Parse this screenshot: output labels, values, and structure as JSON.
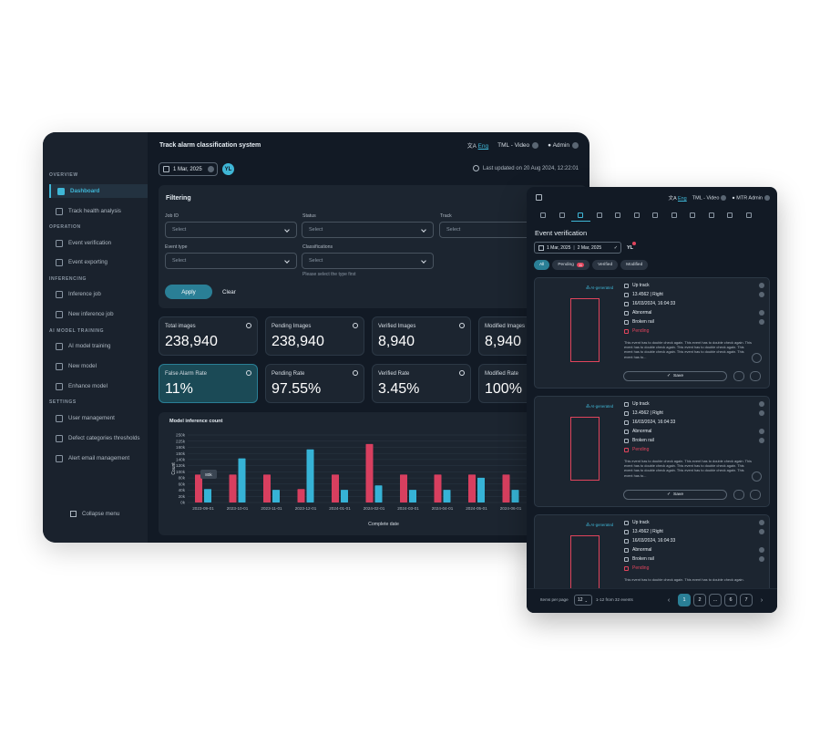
{
  "dashboard": {
    "app_title": "Track alarm classification system",
    "header": {
      "lang_icon": "translate-icon",
      "lang": "Eng",
      "project": "TML - Video",
      "user": "Admin"
    },
    "date": "1 Mar, 2025",
    "lang_badge": "YL",
    "last_updated": "Last updated on 20 Aug 2024, 12:22:01",
    "sidebar": {
      "sections": [
        "OVERVIEW",
        "OPERATION",
        "INFERENCING",
        "AI MODEL TRAINING",
        "SETTINGS"
      ],
      "items": [
        {
          "label": "Dashboard",
          "icon": "grid-icon"
        },
        {
          "label": "Track health analysis",
          "icon": "track-icon"
        },
        {
          "label": "Event verification",
          "icon": "verify-icon"
        },
        {
          "label": "Event exporting",
          "icon": "export-icon"
        },
        {
          "label": "Inference job",
          "icon": "job-icon"
        },
        {
          "label": "New inference job",
          "icon": "new-job-icon"
        },
        {
          "label": "AI model training",
          "icon": "training-icon"
        },
        {
          "label": "New model",
          "icon": "model-icon"
        },
        {
          "label": "Enhance model",
          "icon": "enhance-icon"
        },
        {
          "label": "User management",
          "icon": "users-icon"
        },
        {
          "label": "Defect categories thresholds",
          "icon": "threshold-icon"
        },
        {
          "label": "Alert email management",
          "icon": "email-icon"
        }
      ],
      "collapse": "Collapse menu"
    },
    "filtering": {
      "title": "Filtering",
      "job_id_label": "Job ID",
      "status_label": "Status",
      "track_label": "Track",
      "event_type_label": "Event type",
      "classifications_label": "Classifications",
      "placeholder": "Select",
      "hint": "Please select the type first",
      "apply": "Apply",
      "clear": "Clear"
    },
    "stats": [
      {
        "label": "Total images",
        "value": "238,940"
      },
      {
        "label": "Pending Images",
        "value": "238,940"
      },
      {
        "label": "Verified Images",
        "value": "8,940"
      },
      {
        "label": "Modified Images",
        "value": "8,940"
      },
      {
        "label": "False Alarm Rate",
        "value": "11%"
      },
      {
        "label": "Pending Rate",
        "value": "97.55%"
      },
      {
        "label": "Verified Rate",
        "value": "3.45%"
      },
      {
        "label": "Modified Rate",
        "value": "100%"
      }
    ]
  },
  "panel": {
    "header": {
      "lang_icon": "translate-icon",
      "lang": "Eng",
      "project": "TML - Video",
      "user": "MTR Admin"
    },
    "title": "Event verification",
    "date_from": "1 Mar, 2025",
    "date_to": "2 Mar, 2025",
    "badge": "YL",
    "chips": [
      {
        "label": "All"
      },
      {
        "label": "Pending",
        "count": "11"
      },
      {
        "label": "Verified"
      },
      {
        "label": "Modified"
      }
    ],
    "cards": [
      {
        "ai": "AI-generated",
        "track": "Up track",
        "position": "13.4562 | Right",
        "datetime": "16/03/2024, 16:04:33",
        "classification": "Abnormal",
        "defect": "Broken rail",
        "status": "Pending",
        "description": "This event has to double check again. This event has to double check again. This event has to double check again. This event has to double check again. This event has to double check again. This event has to double check again. This event has to...",
        "save": "Save"
      },
      {
        "ai": "AI-generated",
        "track": "Up track",
        "position": "13.4562 | Right",
        "datetime": "16/03/2024, 16:04:33",
        "classification": "Abnormal",
        "defect": "Broken rail",
        "status": "Pending",
        "description": "This event has to double check again. This event has to double check again. This event has to double check again. This event has to double check again. This event has to double check again. This event has to double check again. This event has to...",
        "save": "Save"
      },
      {
        "ai": "AI-generated",
        "track": "Up track",
        "position": "13.4562 | Right",
        "datetime": "16/03/2024, 16:04:33",
        "classification": "Abnormal",
        "defect": "Broken rail",
        "status": "Pending",
        "description": "This event has to double check again. This event has to double check again.",
        "save": "Save"
      }
    ],
    "footer": {
      "items_label": "Items per page",
      "page_size": "12",
      "range": "1-12 from 32 events",
      "pages": [
        "1",
        "2",
        "...",
        "6",
        "7"
      ]
    }
  },
  "chart_data": {
    "type": "bar",
    "title": "Model inference count",
    "xlabel": "Complete date",
    "ylabel": "Count",
    "y_ticks": [
      "250k",
      "225k",
      "160k",
      "150k",
      "140k",
      "120k",
      "100k",
      "80k",
      "60k",
      "40k",
      "20k",
      "0k"
    ],
    "tooltip": "80k",
    "categories": [
      "2023-09-01",
      "2023-10-01",
      "2023-11-01",
      "2023-12-01",
      "2024-01-01",
      "2024-02-01",
      "2024-03-01",
      "2024-04-01",
      "2024-05-01",
      "2024-06-01"
    ],
    "series": [
      {
        "color": "#d83f5f",
        "values": [
          62,
          62,
          62,
          30,
          62,
          130,
          62,
          62,
          62,
          62
        ]
      },
      {
        "color": "#36b3d6",
        "values": [
          30,
          98,
          28,
          118,
          28,
          38,
          28,
          28,
          55,
          28
        ]
      }
    ],
    "ylim": [
      0,
      150
    ]
  }
}
